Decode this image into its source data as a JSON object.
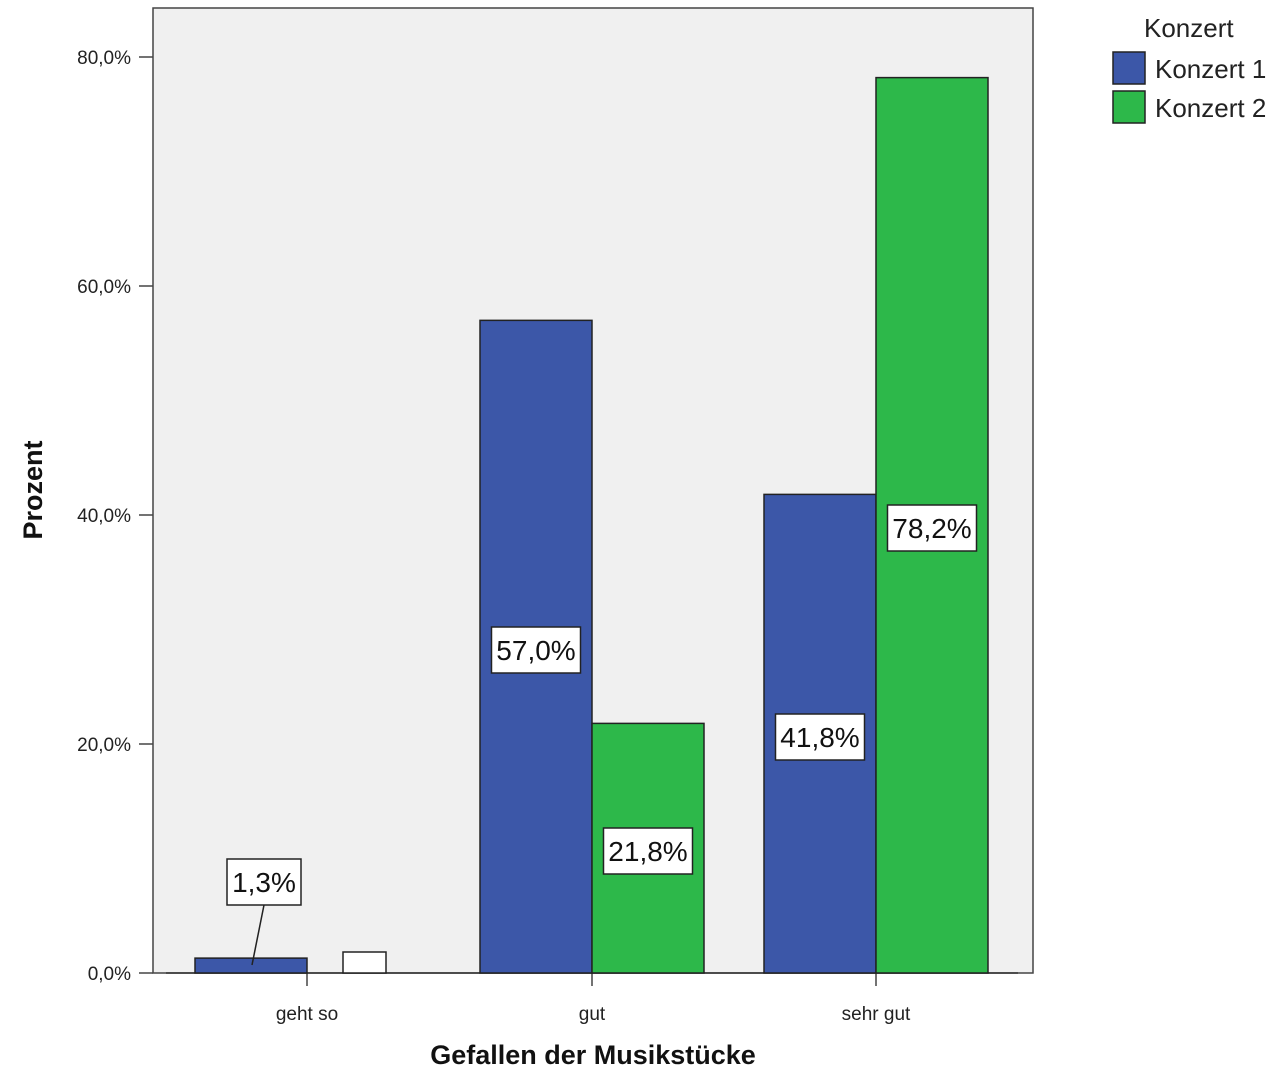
{
  "chart_data": {
    "type": "bar",
    "categories": [
      "geht so",
      "gut",
      "sehr gut"
    ],
    "series": [
      {
        "name": "Konzert 1",
        "color": "#3c57a8",
        "values": [
          1.3,
          57.0,
          41.8
        ],
        "labels": [
          "1,3%",
          "57,0%",
          "41,8%"
        ]
      },
      {
        "name": "Konzert 2",
        "color": "#2db84a",
        "values": [
          0,
          21.8,
          78.2
        ],
        "labels": [
          "",
          "21,8%",
          "78,2%"
        ]
      }
    ],
    "xlabel": "Gefallen der Musikstücke",
    "ylabel": "Prozent",
    "ylim": [
      0,
      80
    ],
    "yticks": [
      0,
      20,
      40,
      60,
      80
    ],
    "ytick_labels": [
      "0,0%",
      "20,0%",
      "40,0%",
      "60,0%",
      "80,0%"
    ],
    "legend": {
      "title": "Konzert",
      "placement": "top-right-outside"
    },
    "plot_background": "#f0f0f0",
    "grid": false
  }
}
